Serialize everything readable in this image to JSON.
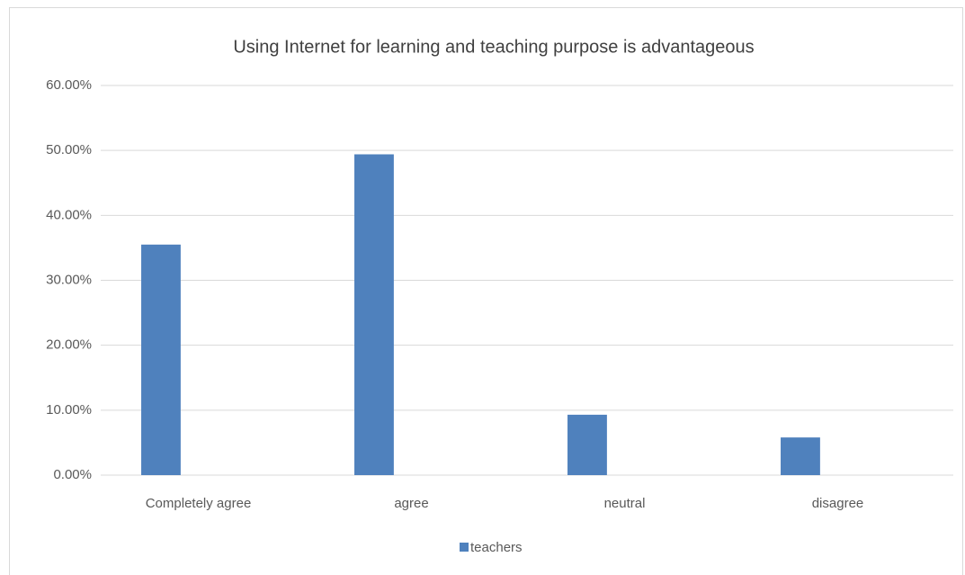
{
  "chart_data": {
    "type": "bar",
    "title": "Using Internet for learning and teaching purpose is advantageous",
    "categories": [
      "Completely agree",
      "agree",
      "neutral",
      "disagree"
    ],
    "series": [
      {
        "name": "teachers",
        "color": "#4f81bd",
        "values": [
          35.5,
          49.4,
          9.3,
          5.8
        ]
      }
    ],
    "ylim": [
      0,
      60
    ],
    "yticks": [
      {
        "value": 0,
        "label": "0.00%"
      },
      {
        "value": 10,
        "label": "10.00%"
      },
      {
        "value": 20,
        "label": "20.00%"
      },
      {
        "value": 30,
        "label": "30.00%"
      },
      {
        "value": 40,
        "label": "40.00%"
      },
      {
        "value": 50,
        "label": "50.00%"
      },
      {
        "value": 60,
        "label": "60.00%"
      }
    ],
    "grid": true,
    "legend": "bottom"
  }
}
